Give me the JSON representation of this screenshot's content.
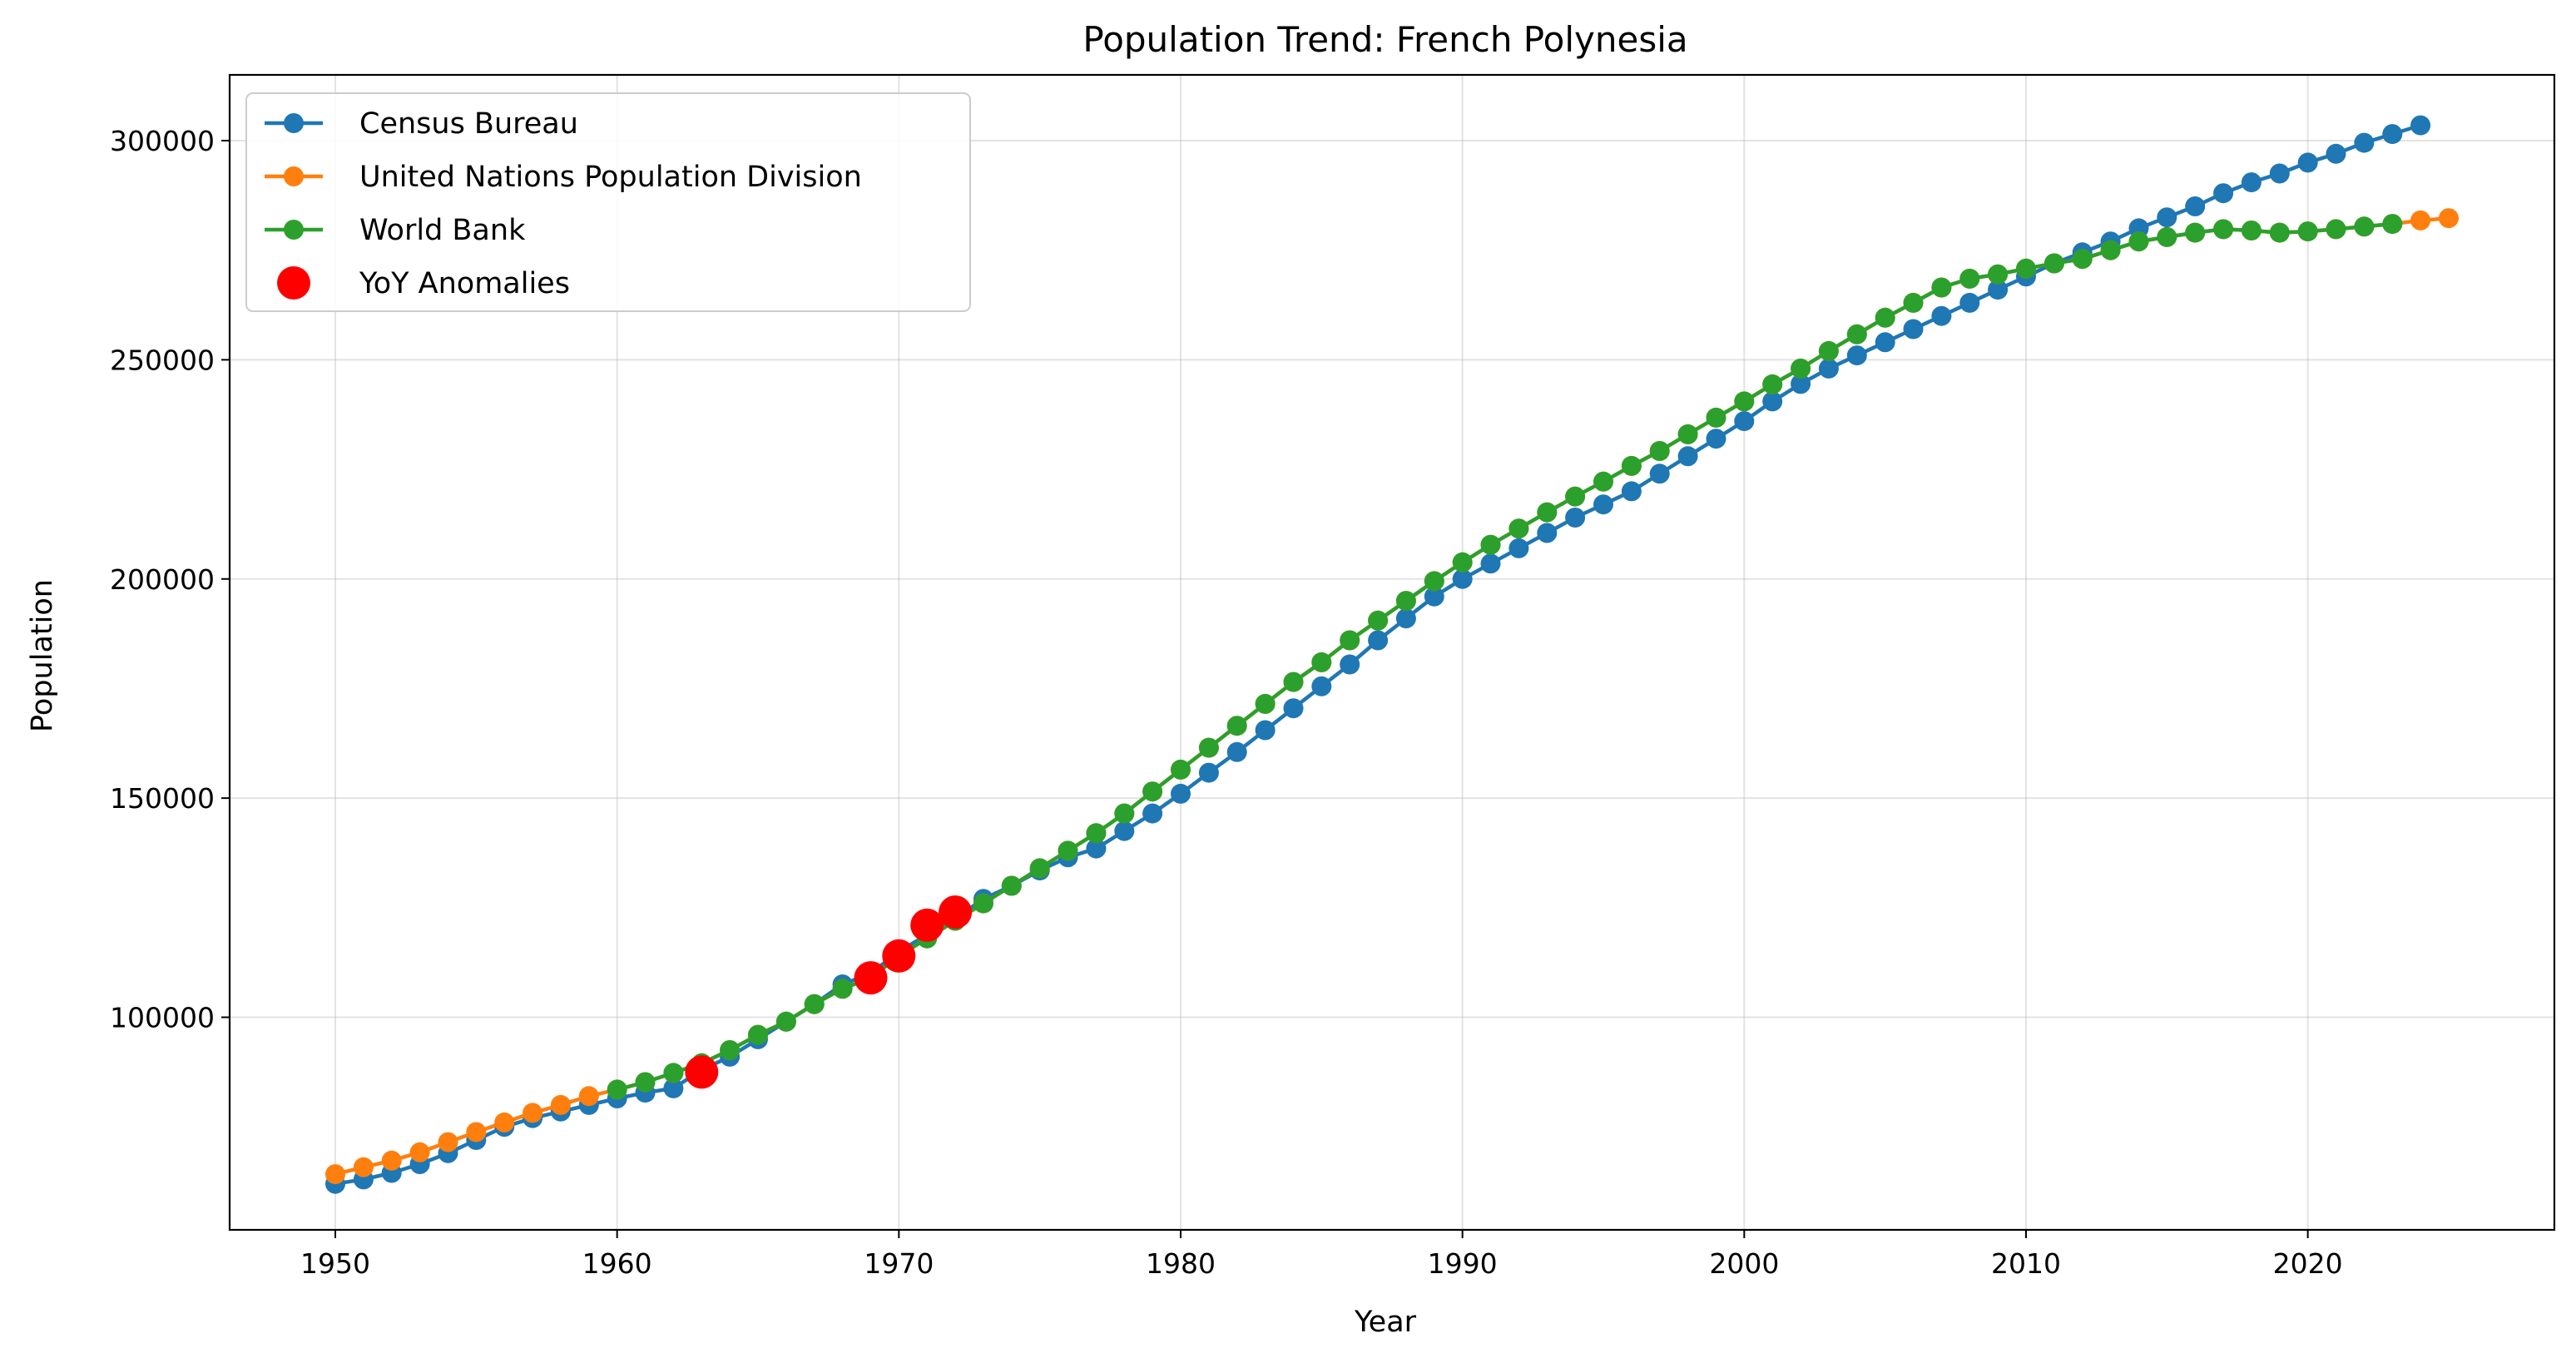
{
  "chart_data": {
    "type": "line",
    "title": "Population Trend: French Polynesia",
    "xlabel": "Year",
    "ylabel": "Population",
    "xlim": [
      1946.25,
      2028.75
    ],
    "ylim": [
      51500,
      315000
    ],
    "xticks": [
      1950,
      1960,
      1970,
      1980,
      1990,
      2000,
      2010,
      2020
    ],
    "yticks": [
      100000,
      150000,
      200000,
      250000,
      300000
    ],
    "grid": true,
    "legend_position": "top-left",
    "series": [
      {
        "name": "Census Bureau",
        "color": "#1f77b4",
        "x": [
          1950,
          1951,
          1952,
          1953,
          1954,
          1955,
          1956,
          1957,
          1958,
          1959,
          1960,
          1961,
          1962,
          1963,
          1964,
          1965,
          1966,
          1967,
          1968,
          1969,
          1970,
          1971,
          1972,
          1973,
          1974,
          1975,
          1976,
          1977,
          1978,
          1979,
          1980,
          1981,
          1982,
          1983,
          1984,
          1985,
          1986,
          1987,
          1988,
          1989,
          1990,
          1991,
          1992,
          1993,
          1994,
          1995,
          1996,
          1997,
          1998,
          1999,
          2000,
          2001,
          2002,
          2003,
          2004,
          2005,
          2006,
          2007,
          2008,
          2009,
          2010,
          2011,
          2012,
          2013,
          2014,
          2015,
          2016,
          2017,
          2018,
          2019,
          2020,
          2021,
          2022,
          2023,
          2024
        ],
        "y": [
          62000,
          63000,
          64500,
          66500,
          69000,
          72000,
          75000,
          77000,
          78500,
          80000,
          81500,
          82800,
          83800,
          88000,
          91000,
          95000,
          99000,
          103000,
          107500,
          110000,
          115000,
          118800,
          122500,
          127000,
          130000,
          133500,
          136500,
          138500,
          142500,
          146500,
          151000,
          155800,
          160500,
          165500,
          170500,
          175500,
          180500,
          186000,
          191000,
          196000,
          200000,
          203500,
          207000,
          210500,
          214000,
          217000,
          220000,
          224000,
          228000,
          232000,
          236000,
          240500,
          244500,
          248000,
          251000,
          254000,
          257000,
          260000,
          263000,
          266000,
          269000,
          272000,
          274500,
          277000,
          280000,
          282500,
          285000,
          288000,
          290500,
          292500,
          295000,
          297000,
          299500,
          301500,
          303500
        ]
      },
      {
        "name": "United Nations Population Division",
        "color": "#ff7f0e",
        "x": [
          1950,
          1951,
          1952,
          1953,
          1954,
          1955,
          1956,
          1957,
          1958,
          1959,
          1960,
          1961,
          1962,
          1963,
          1964,
          1965,
          1966,
          1967,
          1968,
          1969,
          1970,
          1971,
          1972,
          1973,
          1974,
          1975,
          1976,
          1977,
          1978,
          1979,
          1980,
          1981,
          1982,
          1983,
          1984,
          1985,
          1986,
          1987,
          1988,
          1989,
          1990,
          1991,
          1992,
          1993,
          1994,
          1995,
          1996,
          1997,
          1998,
          1999,
          2000,
          2001,
          2002,
          2003,
          2004,
          2005,
          2006,
          2007,
          2008,
          2009,
          2010,
          2011,
          2012,
          2013,
          2014,
          2015,
          2016,
          2017,
          2018,
          2019,
          2020,
          2021,
          2022,
          2023,
          2024,
          2025
        ],
        "y": [
          64200,
          65800,
          67300,
          69200,
          71500,
          73800,
          76000,
          78200,
          80000,
          82000,
          83500,
          85200,
          87300,
          89500,
          92500,
          96000,
          99000,
          103000,
          106500,
          109000,
          114000,
          118000,
          122000,
          126000,
          130000,
          134000,
          138000,
          142000,
          146500,
          151500,
          156500,
          161500,
          166500,
          171500,
          176500,
          181000,
          186000,
          190500,
          195000,
          199500,
          203800,
          207800,
          211500,
          215200,
          218800,
          222200,
          225800,
          229200,
          233000,
          236800,
          240500,
          244400,
          248000,
          252000,
          255800,
          259600,
          263000,
          266500,
          268500,
          269500,
          270800,
          272000,
          273000,
          275000,
          277000,
          278000,
          279000,
          279800,
          279500,
          279000,
          279300,
          279800,
          280400,
          281000,
          281800,
          282300
        ]
      },
      {
        "name": "World Bank",
        "color": "#2ca02c",
        "x": [
          1960,
          1961,
          1962,
          1963,
          1964,
          1965,
          1966,
          1967,
          1968,
          1969,
          1970,
          1971,
          1972,
          1973,
          1974,
          1975,
          1976,
          1977,
          1978,
          1979,
          1980,
          1981,
          1982,
          1983,
          1984,
          1985,
          1986,
          1987,
          1988,
          1989,
          1990,
          1991,
          1992,
          1993,
          1994,
          1995,
          1996,
          1997,
          1998,
          1999,
          2000,
          2001,
          2002,
          2003,
          2004,
          2005,
          2006,
          2007,
          2008,
          2009,
          2010,
          2011,
          2012,
          2013,
          2014,
          2015,
          2016,
          2017,
          2018,
          2019,
          2020,
          2021,
          2022,
          2023
        ],
        "y": [
          83500,
          85200,
          87300,
          89500,
          92500,
          96000,
          99000,
          103000,
          106500,
          109000,
          114000,
          118000,
          122000,
          126000,
          130000,
          134000,
          138000,
          142000,
          146500,
          151500,
          156500,
          161500,
          166500,
          171500,
          176500,
          181000,
          186000,
          190500,
          195000,
          199500,
          203800,
          207800,
          211500,
          215200,
          218800,
          222200,
          225800,
          229200,
          233000,
          236800,
          240500,
          244400,
          248000,
          252000,
          255800,
          259600,
          263000,
          266500,
          268500,
          269500,
          270800,
          272000,
          273000,
          275000,
          277000,
          278000,
          279000,
          279800,
          279500,
          279000,
          279300,
          279800,
          280400,
          281000
        ]
      }
    ],
    "anomalies": {
      "name": "YoY Anomalies",
      "color": "#ff0000",
      "x": [
        1963,
        1969,
        1970,
        1971,
        1972
      ],
      "y": [
        87500,
        109000,
        114000,
        121000,
        124000
      ]
    }
  }
}
